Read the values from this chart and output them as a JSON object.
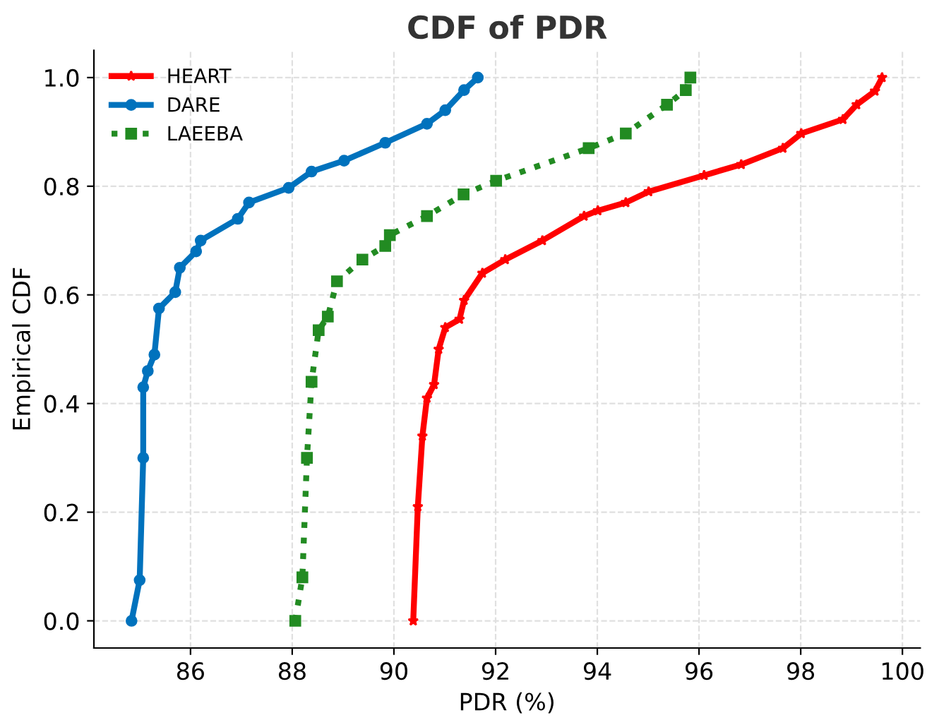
{
  "chart_data": {
    "type": "line",
    "title": "CDF of PDR",
    "xlabel": "PDR (%)",
    "ylabel": "Empirical CDF",
    "xlim": [
      84.1,
      100.35
    ],
    "ylim": [
      -0.05,
      1.05
    ],
    "xticks": [
      86,
      88,
      90,
      92,
      94,
      96,
      98,
      100
    ],
    "yticks": [
      {
        "value": 0,
        "label": "0.0"
      },
      0.2,
      0.4,
      0.6,
      0.8,
      {
        "value": 1,
        "label": "1.0"
      }
    ],
    "grid": true,
    "legend": "top left",
    "series": [
      {
        "name": "HEART",
        "color": "#ff0000",
        "marker": "star",
        "line_style": "solid",
        "x": [
          90.38,
          90.47,
          90.56,
          90.65,
          90.79,
          90.88,
          91.01,
          91.29,
          91.38,
          91.74,
          92.19,
          92.92,
          93.74,
          94.01,
          94.56,
          95.01,
          96.1,
          96.83,
          97.65,
          98.01,
          98.83,
          99.1,
          99.46,
          99.6
        ],
        "values": [
          0.0,
          0.21,
          0.34,
          0.41,
          0.435,
          0.5,
          0.54,
          0.555,
          0.59,
          0.64,
          0.665,
          0.7,
          0.745,
          0.755,
          0.77,
          0.79,
          0.82,
          0.84,
          0.87,
          0.897,
          0.923,
          0.95,
          0.975,
          1.0
        ]
      },
      {
        "name": "DARE",
        "color": "#0072bd",
        "marker": "circle",
        "line_style": "solid",
        "x": [
          84.84,
          85.0,
          85.07,
          85.07,
          85.16,
          85.29,
          85.38,
          85.7,
          85.79,
          86.11,
          86.2,
          86.93,
          87.15,
          87.93,
          88.38,
          89.02,
          89.83,
          90.65,
          91.01,
          91.38,
          91.65
        ],
        "values": [
          0.0,
          0.075,
          0.3,
          0.43,
          0.46,
          0.49,
          0.575,
          0.605,
          0.65,
          0.68,
          0.7,
          0.74,
          0.77,
          0.797,
          0.827,
          0.847,
          0.88,
          0.915,
          0.94,
          0.977,
          1.0
        ]
      },
      {
        "name": "LAEEBA",
        "color": "#228b22",
        "marker": "square",
        "line_style": "dotted",
        "x": [
          88.06,
          88.2,
          88.29,
          88.38,
          88.52,
          88.7,
          88.88,
          89.38,
          89.83,
          89.92,
          90.65,
          91.37,
          92.01,
          93.83,
          94.56,
          95.37,
          95.74,
          95.83
        ],
        "values": [
          0.0,
          0.08,
          0.3,
          0.44,
          0.535,
          0.56,
          0.625,
          0.665,
          0.69,
          0.71,
          0.745,
          0.785,
          0.81,
          0.87,
          0.897,
          0.95,
          0.977,
          1.0
        ]
      }
    ]
  }
}
